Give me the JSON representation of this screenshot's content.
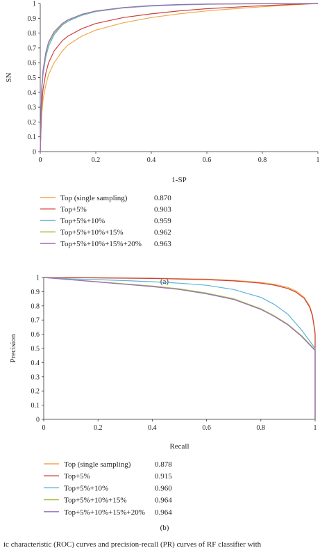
{
  "caption_fragment": "ic characteristic (ROC) curves and precision-recall (PR) curves of RF classifier with",
  "chart_data": [
    {
      "type": "line",
      "panel_label": "(a)",
      "title": "",
      "xlabel": "1-SP",
      "ylabel": "SN",
      "xlim": [
        0,
        1
      ],
      "ylim": [
        0,
        1
      ],
      "xticks": [
        "0",
        "0.2",
        "0.4",
        "0.6",
        "0.8",
        "1"
      ],
      "yticks": [
        "0",
        "0.1",
        "0.2",
        "0.3",
        "0.4",
        "0.5",
        "0.6",
        "0.7",
        "0.8",
        "0.9",
        "1"
      ],
      "grid": false,
      "legend_position": "below",
      "series": [
        {
          "name": "Top (single sampling)",
          "value": "0.870",
          "color": "#f5a54a",
          "x": [
            0,
            0.005,
            0.01,
            0.02,
            0.03,
            0.05,
            0.08,
            0.1,
            0.15,
            0.2,
            0.3,
            0.4,
            0.5,
            0.6,
            0.7,
            0.8,
            0.9,
            1.0
          ],
          "y": [
            0,
            0.25,
            0.35,
            0.45,
            0.52,
            0.6,
            0.68,
            0.72,
            0.78,
            0.82,
            0.87,
            0.905,
            0.93,
            0.95,
            0.965,
            0.978,
            0.99,
            1.0
          ]
        },
        {
          "name": "Top+5%",
          "value": "0.903",
          "color": "#c9403a",
          "x": [
            0,
            0.005,
            0.01,
            0.02,
            0.03,
            0.05,
            0.08,
            0.1,
            0.15,
            0.2,
            0.3,
            0.4,
            0.5,
            0.6,
            0.7,
            0.8,
            0.9,
            1.0
          ],
          "y": [
            0,
            0.3,
            0.42,
            0.53,
            0.6,
            0.68,
            0.75,
            0.78,
            0.83,
            0.865,
            0.905,
            0.93,
            0.95,
            0.965,
            0.975,
            0.985,
            0.993,
            1.0
          ]
        },
        {
          "name": "Top+5%+10%",
          "value": "0.959",
          "color": "#5ab4d6",
          "x": [
            0,
            0.005,
            0.01,
            0.02,
            0.03,
            0.05,
            0.08,
            0.1,
            0.15,
            0.2,
            0.3,
            0.4,
            0.5,
            0.6,
            0.8,
            1.0
          ],
          "y": [
            0,
            0.4,
            0.52,
            0.64,
            0.71,
            0.79,
            0.855,
            0.88,
            0.92,
            0.945,
            0.97,
            0.983,
            0.99,
            0.995,
            0.998,
            1.0
          ]
        },
        {
          "name": "Top+5%+10%+15%",
          "value": "0.962",
          "color": "#a5bd3a",
          "x": [
            0,
            0.005,
            0.01,
            0.02,
            0.03,
            0.05,
            0.08,
            0.1,
            0.15,
            0.2,
            0.3,
            0.4,
            0.5,
            0.6,
            0.8,
            1.0
          ],
          "y": [
            0,
            0.42,
            0.54,
            0.66,
            0.73,
            0.8,
            0.862,
            0.887,
            0.925,
            0.948,
            0.972,
            0.985,
            0.992,
            0.996,
            0.999,
            1.0
          ]
        },
        {
          "name": "Top+5%+10%+15%+20%",
          "value": "0.963",
          "color": "#9b6bc0",
          "x": [
            0,
            0.005,
            0.01,
            0.02,
            0.03,
            0.05,
            0.08,
            0.1,
            0.15,
            0.2,
            0.3,
            0.4,
            0.5,
            0.6,
            0.8,
            1.0
          ],
          "y": [
            0,
            0.43,
            0.55,
            0.67,
            0.74,
            0.81,
            0.866,
            0.89,
            0.927,
            0.95,
            0.973,
            0.986,
            0.993,
            0.996,
            0.999,
            1.0
          ]
        }
      ]
    },
    {
      "type": "line",
      "panel_label": "(b)",
      "title": "",
      "xlabel": "Recall",
      "ylabel": "Precision",
      "xlim": [
        0,
        1
      ],
      "ylim": [
        0,
        1
      ],
      "xticks": [
        "0",
        "0.2",
        "0.4",
        "0.6",
        "0.8",
        "1"
      ],
      "yticks": [
        "0",
        "0.1",
        "0.2",
        "0.3",
        "0.4",
        "0.5",
        "0.6",
        "0.7",
        "0.8",
        "0.9",
        "1"
      ],
      "grid": false,
      "legend_position": "below",
      "series": [
        {
          "name": "Top (single sampling)",
          "value": "0.878",
          "color": "#f5a54a",
          "x": [
            0,
            0.2,
            0.4,
            0.6,
            0.7,
            0.8,
            0.85,
            0.9,
            0.93,
            0.96,
            0.98,
            0.99,
            0.995,
            1.0,
            1.0
          ],
          "y": [
            1.0,
            0.998,
            0.995,
            0.988,
            0.98,
            0.965,
            0.952,
            0.93,
            0.905,
            0.86,
            0.8,
            0.74,
            0.68,
            0.62,
            0
          ]
        },
        {
          "name": "Top+5%",
          "value": "0.915",
          "color": "#c9403a",
          "x": [
            0,
            0.2,
            0.4,
            0.6,
            0.7,
            0.8,
            0.85,
            0.9,
            0.93,
            0.96,
            0.98,
            0.99,
            0.995,
            1.0,
            1.0
          ],
          "y": [
            1.0,
            0.997,
            0.993,
            0.985,
            0.976,
            0.96,
            0.946,
            0.922,
            0.896,
            0.852,
            0.79,
            0.73,
            0.67,
            0.6,
            0
          ]
        },
        {
          "name": "Top+5%+10%",
          "value": "0.960",
          "color": "#5ab4d6",
          "x": [
            0,
            0.1,
            0.2,
            0.3,
            0.4,
            0.5,
            0.6,
            0.7,
            0.8,
            0.85,
            0.9,
            0.95,
            1.0,
            1.0
          ],
          "y": [
            1.0,
            0.99,
            0.985,
            0.978,
            0.97,
            0.96,
            0.945,
            0.915,
            0.86,
            0.81,
            0.74,
            0.63,
            0.5,
            0
          ]
        },
        {
          "name": "Top+5%+10%+15%",
          "value": "0.964",
          "color": "#a5bd3a",
          "x": [
            0,
            0.1,
            0.2,
            0.3,
            0.4,
            0.5,
            0.6,
            0.7,
            0.8,
            0.85,
            0.9,
            0.95,
            1.0,
            1.0
          ],
          "y": [
            1.0,
            0.985,
            0.97,
            0.955,
            0.94,
            0.92,
            0.89,
            0.85,
            0.78,
            0.73,
            0.67,
            0.59,
            0.49,
            0
          ]
        },
        {
          "name": "Top+5%+10%+15%+20%",
          "value": "0.964",
          "color": "#9b6bc0",
          "x": [
            0,
            0.1,
            0.2,
            0.3,
            0.4,
            0.5,
            0.6,
            0.7,
            0.8,
            0.85,
            0.9,
            0.95,
            1.0,
            1.0
          ],
          "y": [
            1.0,
            0.984,
            0.968,
            0.952,
            0.936,
            0.915,
            0.885,
            0.845,
            0.775,
            0.725,
            0.665,
            0.585,
            0.485,
            0
          ]
        }
      ]
    }
  ]
}
